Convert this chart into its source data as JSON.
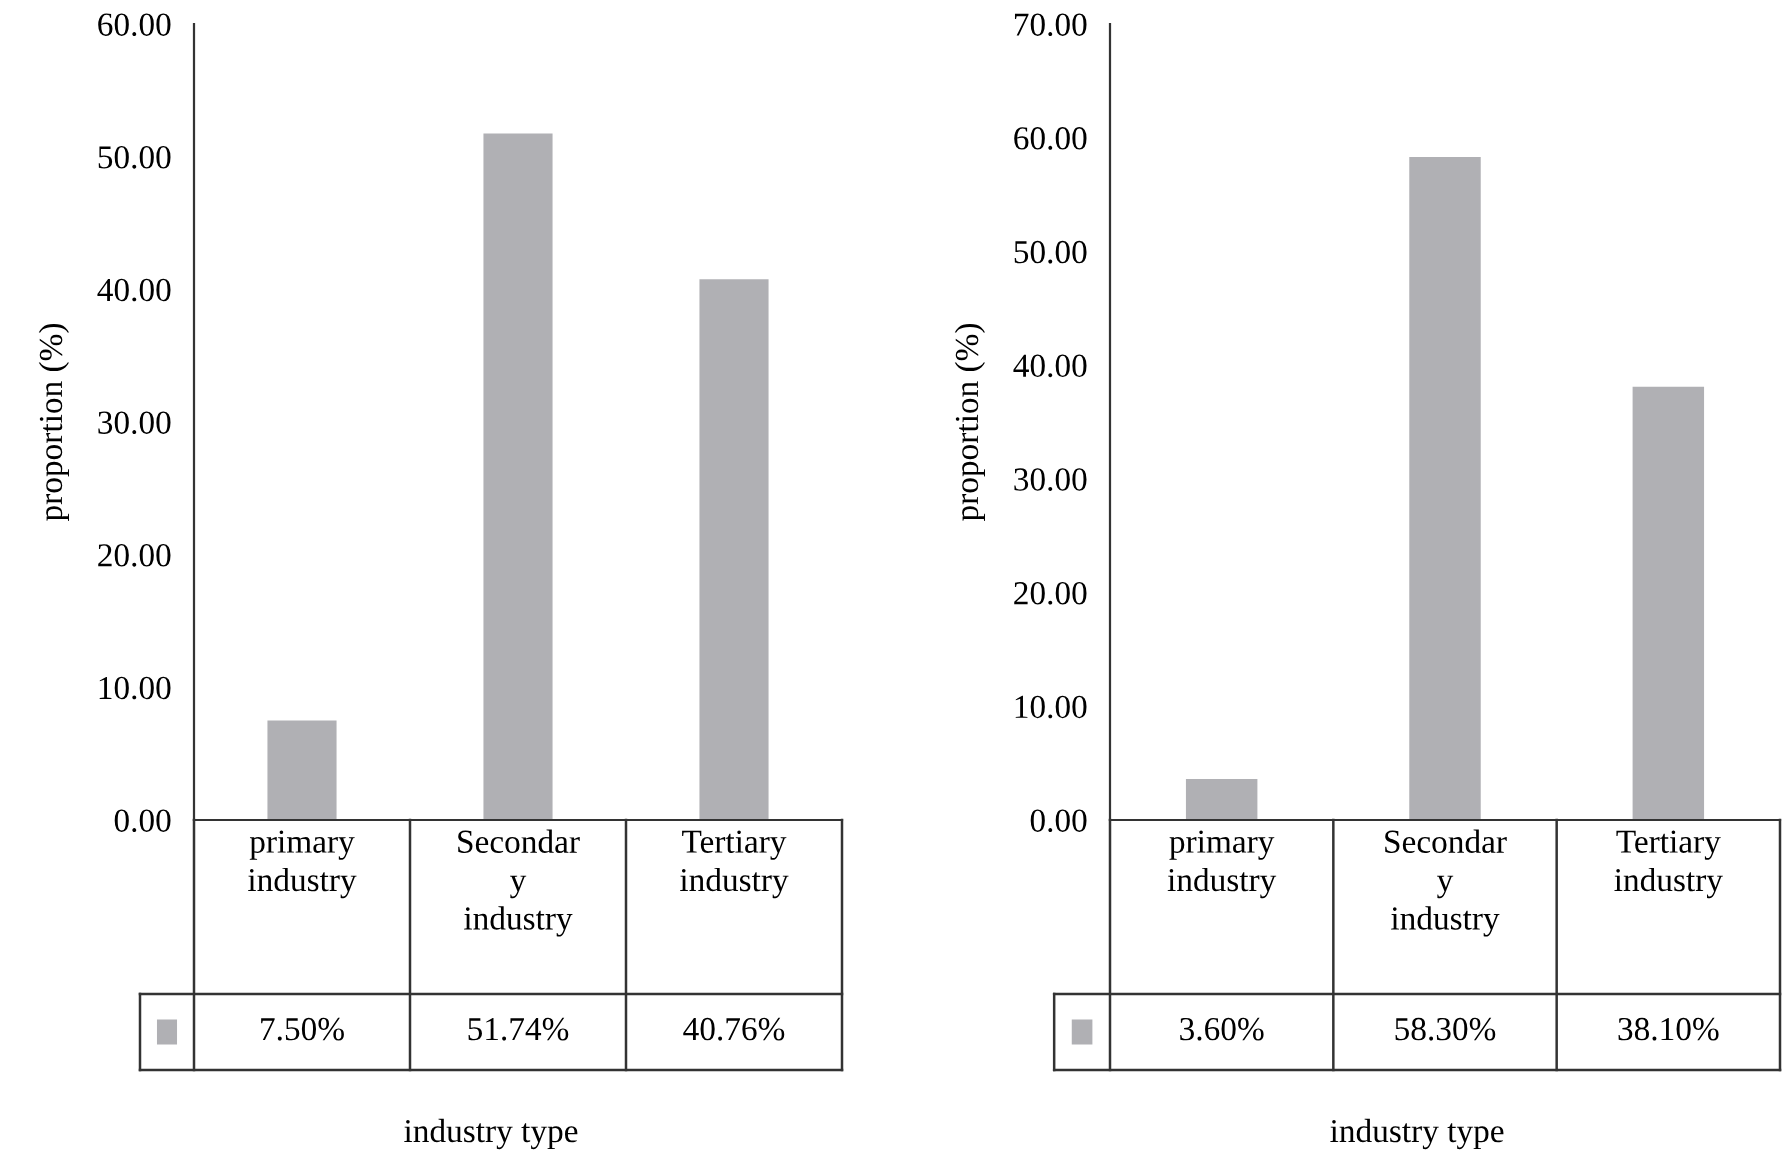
{
  "chart_data": [
    {
      "type": "bar",
      "xlabel": "industry type",
      "ylabel": "proportion (%)",
      "categories": [
        "primary\nindustry",
        "Secondar\ny\nindustry",
        "Tertiary\nindustry"
      ],
      "values": [
        7.5,
        51.74,
        40.76
      ],
      "value_labels": [
        "7.50%",
        "51.74%",
        "40.76%"
      ],
      "color": "#b0b0b4",
      "ylim": [
        0,
        60
      ],
      "yticks": [
        {
          "value": 0,
          "label": "0.00"
        },
        {
          "value": 10,
          "label": "10.00"
        },
        {
          "value": 20,
          "label": "20.00"
        },
        {
          "value": 30,
          "label": "30.00"
        },
        {
          "value": 40,
          "label": "40.00"
        },
        {
          "value": 50,
          "label": "50.00"
        },
        {
          "value": 60,
          "label": "60.00"
        }
      ]
    },
    {
      "type": "bar",
      "xlabel": "industry type",
      "ylabel": "proportion (%)",
      "categories": [
        "primary\nindustry",
        "Secondar\ny\nindustry",
        "Tertiary\nindustry"
      ],
      "values": [
        3.6,
        58.3,
        38.1
      ],
      "value_labels": [
        "3.60%",
        "58.30%",
        "38.10%"
      ],
      "color": "#b0b0b4",
      "ylim": [
        0,
        70
      ],
      "yticks": [
        {
          "value": 0,
          "label": "0.00"
        },
        {
          "value": 10,
          "label": "10.00"
        },
        {
          "value": 20,
          "label": "20.00"
        },
        {
          "value": 30,
          "label": "30.00"
        },
        {
          "value": 40,
          "label": "40.00"
        },
        {
          "value": 50,
          "label": "50.00"
        },
        {
          "value": 60,
          "label": "60.00"
        },
        {
          "value": 70,
          "label": "70.00"
        }
      ]
    }
  ]
}
